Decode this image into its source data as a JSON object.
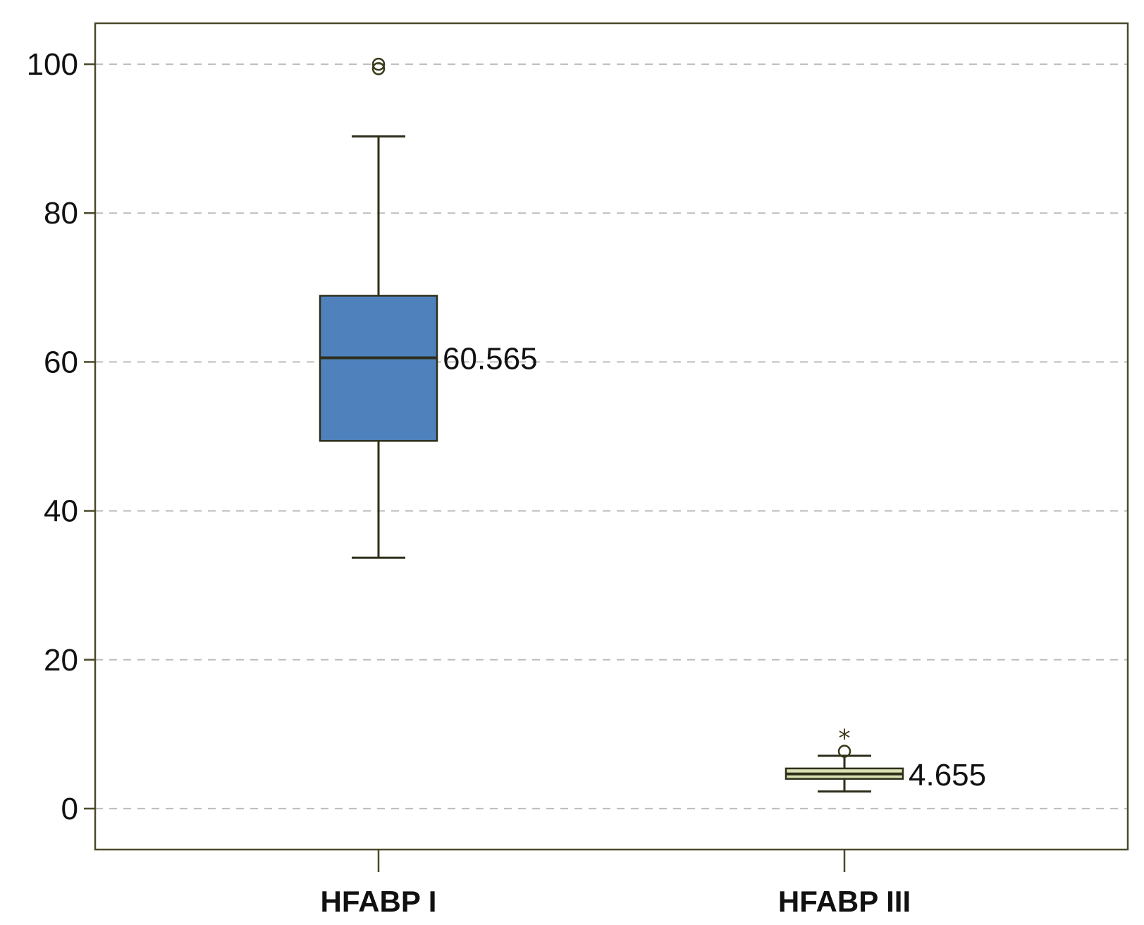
{
  "chart_data": {
    "type": "box",
    "title": "",
    "xlabel": "",
    "ylabel": "",
    "ylim": [
      -5.5,
      105.5
    ],
    "yticks": [
      0,
      20,
      40,
      60,
      80,
      100
    ],
    "ytick_labels": [
      "0",
      "20",
      "40",
      "60",
      "80",
      "100"
    ],
    "grid": "horizontal dashed",
    "categories": [
      "HFABP I",
      "HFABP III"
    ],
    "boxes": [
      {
        "category": "HFABP I",
        "whisker_low": 33.7,
        "q1": 49.4,
        "median": 60.565,
        "q3": 68.9,
        "whisker_high": 90.3,
        "outliers": [
          99.4,
          100.0
        ],
        "extremes": [],
        "median_label": "60.565",
        "fill": "#4f81bd"
      },
      {
        "category": "HFABP III",
        "whisker_low": 2.3,
        "q1": 4.0,
        "median": 4.655,
        "q3": 5.4,
        "whisker_high": 7.1,
        "outliers": [
          7.7
        ],
        "extremes": [
          9.5
        ],
        "median_label": "4.655",
        "fill": "#d8e0b4"
      }
    ],
    "colors": {
      "frame": "#4a4a2a",
      "grid": "#bdbdbd",
      "box_outline": "#2e2e1a",
      "marker": "#3a3a1a"
    },
    "marker_glyphs": {
      "extreme": "*"
    }
  }
}
